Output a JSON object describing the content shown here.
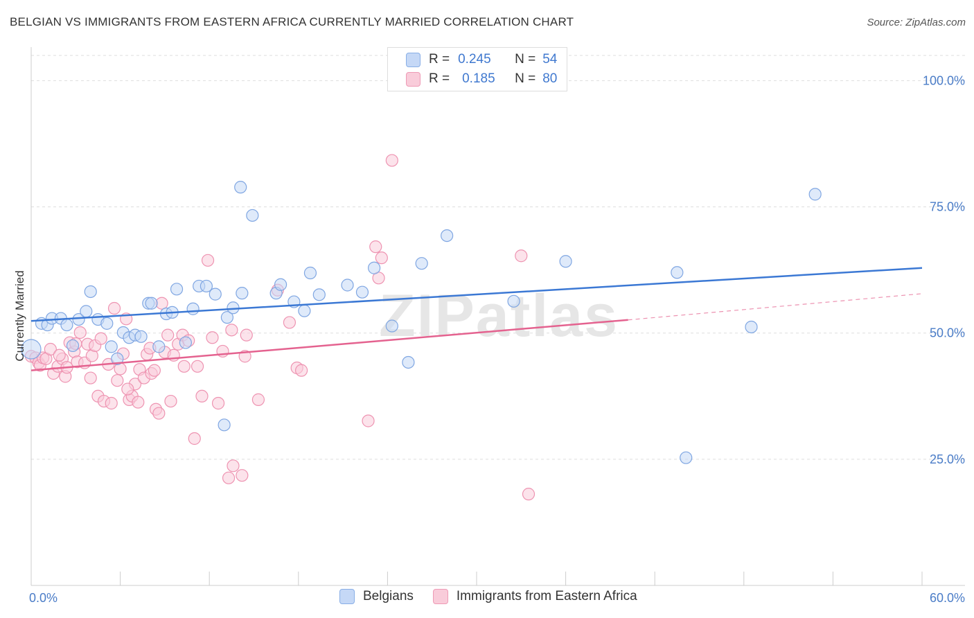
{
  "header": {
    "title": "BELGIAN VS IMMIGRANTS FROM EASTERN AFRICA CURRENTLY MARRIED CORRELATION CHART",
    "source": "Source: ZipAtlas.com"
  },
  "watermark": "ZIPatlas",
  "stats_legend": {
    "rows": [
      {
        "r_label": "R =",
        "r_value": "0.245",
        "n_label": "N =",
        "n_value": "54"
      },
      {
        "r_label": "R =",
        "r_value": "0.185",
        "n_label": "N =",
        "n_value": "80"
      }
    ]
  },
  "colors": {
    "blue": "#3b78d4",
    "blue_fill": "#c5d8f6",
    "blue_edge": "#7fa6e2",
    "pink": "#e4628f",
    "pink_fill": "#f9ccda",
    "pink_edge": "#ee93b1",
    "grid": "#dddddd",
    "tick_text": "#4a7cc7"
  },
  "chart_data": {
    "type": "scatter",
    "title": "BELGIAN VS IMMIGRANTS FROM EASTERN AFRICA CURRENTLY MARRIED CORRELATION CHART",
    "xlabel": "",
    "ylabel": "Currently Married",
    "xlim": [
      0,
      60
    ],
    "ylim": [
      0,
      105
    ],
    "x_tick_labels": [
      "0.0%",
      "60.0%"
    ],
    "y_ticks": [
      25,
      50,
      75,
      100
    ],
    "y_tick_labels": [
      "25.0%",
      "50.0%",
      "75.0%",
      "100.0%"
    ],
    "grid": "horizontal dashed",
    "legend_position": "bottom-center",
    "series": [
      {
        "name": "Belgians",
        "color": "#3b78d4",
        "trend": {
          "x": [
            0,
            60
          ],
          "y": [
            52.4,
            62.9
          ]
        },
        "points": [
          [
            0.0,
            46.8
          ],
          [
            0.7,
            51.9
          ],
          [
            1.1,
            51.6
          ],
          [
            1.4,
            52.9
          ],
          [
            2.0,
            52.9
          ],
          [
            2.4,
            51.6
          ],
          [
            2.8,
            47.5
          ],
          [
            3.2,
            52.7
          ],
          [
            3.7,
            54.3
          ],
          [
            4.0,
            58.2
          ],
          [
            4.5,
            52.7
          ],
          [
            5.1,
            51.9
          ],
          [
            5.4,
            47.3
          ],
          [
            5.8,
            44.9
          ],
          [
            6.2,
            50.1
          ],
          [
            6.6,
            49.1
          ],
          [
            7.0,
            49.6
          ],
          [
            7.4,
            49.3
          ],
          [
            7.9,
            55.9
          ],
          [
            8.1,
            55.9
          ],
          [
            8.6,
            47.3
          ],
          [
            9.1,
            53.8
          ],
          [
            9.5,
            54.1
          ],
          [
            9.8,
            58.7
          ],
          [
            10.4,
            48.1
          ],
          [
            10.9,
            54.8
          ],
          [
            11.3,
            59.3
          ],
          [
            11.8,
            59.3
          ],
          [
            12.4,
            57.7
          ],
          [
            13.0,
            31.8
          ],
          [
            13.2,
            53.1
          ],
          [
            13.6,
            55.0
          ],
          [
            14.2,
            57.9
          ],
          [
            14.1,
            78.9
          ],
          [
            14.9,
            73.3
          ],
          [
            16.5,
            57.9
          ],
          [
            16.8,
            59.6
          ],
          [
            17.7,
            56.2
          ],
          [
            18.4,
            54.4
          ],
          [
            18.8,
            61.9
          ],
          [
            19.4,
            57.6
          ],
          [
            21.3,
            59.5
          ],
          [
            22.3,
            58.1
          ],
          [
            23.1,
            62.9
          ],
          [
            24.3,
            51.4
          ],
          [
            25.4,
            44.2
          ],
          [
            26.3,
            63.8
          ],
          [
            28.0,
            69.3
          ],
          [
            32.5,
            56.3
          ],
          [
            36.0,
            64.2
          ],
          [
            43.5,
            62.0
          ],
          [
            44.1,
            25.3
          ],
          [
            48.5,
            51.2
          ],
          [
            52.8,
            77.5
          ]
        ]
      },
      {
        "name": "Immigrants from Eastern Africa",
        "color": "#e4628f",
        "trend": {
          "x": [
            0,
            40.2
          ],
          "y": [
            42.6,
            52.6
          ]
        },
        "trend_dashed": {
          "x": [
            40.2,
            60
          ],
          "y": [
            52.6,
            57.8
          ]
        },
        "points": [
          [
            0.0,
            45.4
          ],
          [
            0.3,
            45.1
          ],
          [
            0.5,
            44.1
          ],
          [
            0.6,
            43.6
          ],
          [
            0.8,
            45.1
          ],
          [
            1.0,
            44.9
          ],
          [
            1.3,
            46.8
          ],
          [
            1.5,
            42.0
          ],
          [
            1.8,
            43.4
          ],
          [
            2.1,
            44.9
          ],
          [
            2.3,
            41.4
          ],
          [
            2.6,
            48.1
          ],
          [
            2.9,
            46.3
          ],
          [
            3.1,
            44.3
          ],
          [
            3.3,
            50.1
          ],
          [
            3.6,
            44.1
          ],
          [
            3.8,
            47.8
          ],
          [
            4.0,
            41.1
          ],
          [
            4.1,
            45.5
          ],
          [
            4.3,
            47.5
          ],
          [
            4.5,
            37.5
          ],
          [
            4.7,
            48.9
          ],
          [
            4.9,
            36.5
          ],
          [
            5.2,
            43.8
          ],
          [
            5.4,
            36.1
          ],
          [
            5.6,
            54.9
          ],
          [
            5.8,
            40.6
          ],
          [
            6.0,
            42.9
          ],
          [
            6.2,
            45.9
          ],
          [
            6.4,
            52.8
          ],
          [
            6.6,
            36.8
          ],
          [
            6.8,
            37.5
          ],
          [
            7.0,
            39.9
          ],
          [
            7.2,
            36.3
          ],
          [
            7.3,
            42.8
          ],
          [
            7.6,
            41.1
          ],
          [
            7.8,
            45.8
          ],
          [
            8.1,
            42.0
          ],
          [
            8.3,
            42.6
          ],
          [
            8.4,
            34.9
          ],
          [
            8.6,
            34.1
          ],
          [
            8.8,
            55.9
          ],
          [
            9.0,
            46.2
          ],
          [
            9.2,
            49.6
          ],
          [
            9.4,
            36.5
          ],
          [
            9.6,
            45.6
          ],
          [
            9.9,
            47.8
          ],
          [
            10.2,
            49.6
          ],
          [
            10.3,
            43.4
          ],
          [
            10.6,
            48.5
          ],
          [
            11.0,
            29.1
          ],
          [
            11.2,
            43.4
          ],
          [
            11.5,
            37.5
          ],
          [
            11.9,
            64.4
          ],
          [
            12.2,
            49.1
          ],
          [
            12.6,
            36.1
          ],
          [
            12.9,
            46.4
          ],
          [
            13.3,
            21.3
          ],
          [
            13.5,
            50.6
          ],
          [
            13.6,
            23.7
          ],
          [
            14.2,
            21.8
          ],
          [
            14.4,
            45.4
          ],
          [
            14.5,
            49.6
          ],
          [
            15.3,
            36.8
          ],
          [
            16.6,
            58.5
          ],
          [
            17.4,
            52.1
          ],
          [
            17.9,
            43.1
          ],
          [
            18.2,
            42.6
          ],
          [
            22.7,
            32.6
          ],
          [
            23.2,
            67.1
          ],
          [
            23.4,
            60.9
          ],
          [
            23.6,
            64.9
          ],
          [
            24.3,
            84.2
          ],
          [
            33.0,
            65.3
          ],
          [
            33.5,
            18.1
          ],
          [
            8.0,
            47.0
          ],
          [
            6.5,
            38.9
          ],
          [
            3.0,
            47.9
          ],
          [
            1.9,
            45.6
          ],
          [
            2.4,
            43.2
          ]
        ]
      }
    ]
  },
  "legend": {
    "items": [
      {
        "label": "Belgians",
        "swatch": "blue"
      },
      {
        "label": "Immigrants from Eastern Africa",
        "swatch": "pink"
      }
    ]
  }
}
